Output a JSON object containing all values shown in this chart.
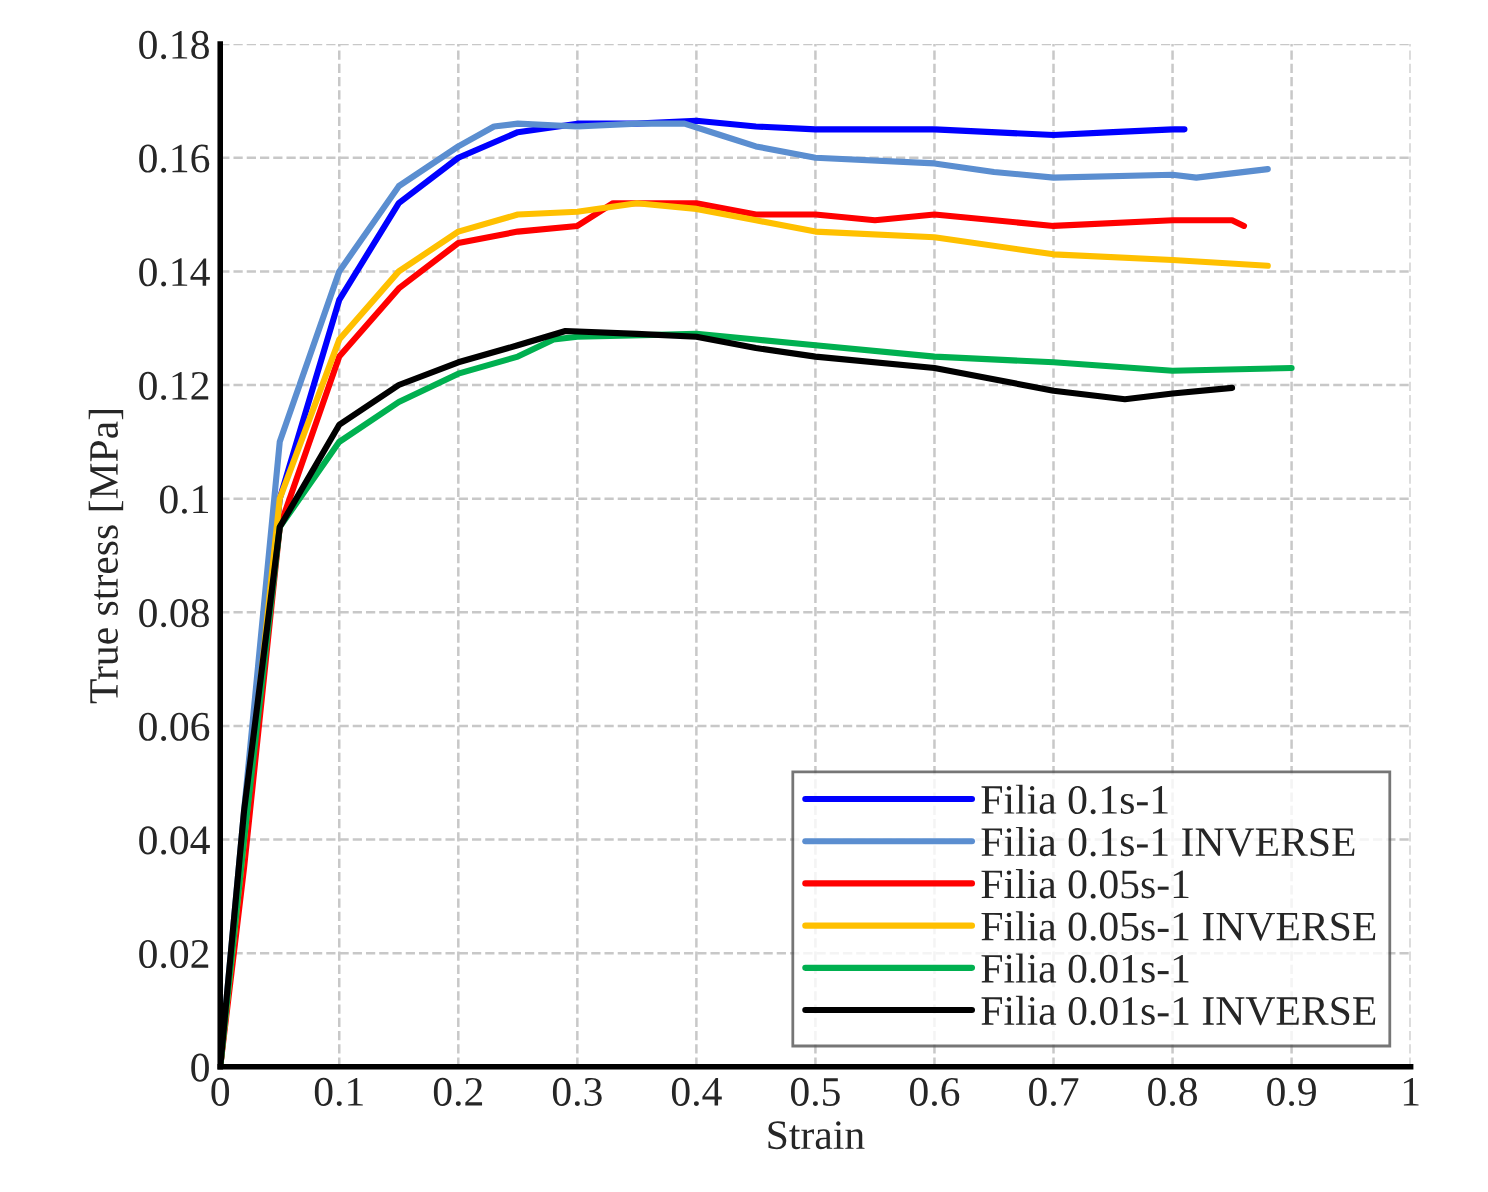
{
  "chart_data": {
    "type": "line",
    "xlabel": "Strain",
    "ylabel": "True stress [MPa]",
    "xlim": [
      0,
      1
    ],
    "xticks": [
      0,
      0.1,
      0.2,
      0.3,
      0.4,
      0.5,
      0.6,
      0.7,
      0.8,
      0.9,
      1
    ],
    "ylim": [
      0,
      0.18
    ],
    "yticks": [
      0,
      0.02,
      0.04,
      0.06,
      0.08,
      0.1,
      0.12,
      0.14,
      0.16,
      0.18
    ],
    "grid": true,
    "legend": "bottom right",
    "marker": "none",
    "line_style": "solid",
    "series": [
      {
        "name": "Filia 0.1s-1",
        "color": "#0000ff",
        "x": [
          0,
          0.02,
          0.05,
          0.1,
          0.15,
          0.2,
          0.25,
          0.3,
          0.35,
          0.4,
          0.45,
          0.5,
          0.6,
          0.7,
          0.75,
          0.8,
          0.81
        ],
        "values": [
          0,
          0.04,
          0.1,
          0.135,
          0.152,
          0.16,
          0.1645,
          0.166,
          0.166,
          0.1665,
          0.1655,
          0.165,
          0.165,
          0.164,
          0.1645,
          0.165,
          0.165
        ]
      },
      {
        "name": "Filia 0.1s-1 INVERSE",
        "color": "#5b8ed0",
        "x": [
          0,
          0.02,
          0.05,
          0.1,
          0.15,
          0.2,
          0.23,
          0.25,
          0.3,
          0.35,
          0.39,
          0.42,
          0.45,
          0.5,
          0.6,
          0.65,
          0.7,
          0.8,
          0.82,
          0.88
        ],
        "values": [
          0,
          0.045,
          0.11,
          0.14,
          0.155,
          0.162,
          0.1655,
          0.166,
          0.1655,
          0.166,
          0.166,
          0.164,
          0.162,
          0.16,
          0.159,
          0.1575,
          0.1565,
          0.157,
          0.1565,
          0.158
        ]
      },
      {
        "name": "Filia 0.05s-1",
        "color": "#ff0000",
        "x": [
          0,
          0.02,
          0.05,
          0.1,
          0.15,
          0.2,
          0.25,
          0.3,
          0.33,
          0.4,
          0.45,
          0.5,
          0.55,
          0.6,
          0.7,
          0.8,
          0.85,
          0.86
        ],
        "values": [
          0,
          0.035,
          0.095,
          0.125,
          0.137,
          0.145,
          0.147,
          0.148,
          0.152,
          0.152,
          0.15,
          0.15,
          0.149,
          0.15,
          0.148,
          0.149,
          0.149,
          0.148
        ]
      },
      {
        "name": "Filia 0.05s-1 INVERSE",
        "color": "#ffc000",
        "x": [
          0,
          0.02,
          0.05,
          0.1,
          0.15,
          0.2,
          0.25,
          0.3,
          0.35,
          0.4,
          0.45,
          0.5,
          0.6,
          0.7,
          0.8,
          0.88
        ],
        "values": [
          0,
          0.04,
          0.1,
          0.128,
          0.14,
          0.147,
          0.15,
          0.1505,
          0.152,
          0.151,
          0.149,
          0.147,
          0.146,
          0.143,
          0.142,
          0.141
        ]
      },
      {
        "name": "Filia 0.01s-1",
        "color": "#00b050",
        "x": [
          0,
          0.02,
          0.05,
          0.1,
          0.15,
          0.2,
          0.25,
          0.28,
          0.3,
          0.4,
          0.45,
          0.5,
          0.6,
          0.7,
          0.8,
          0.9
        ],
        "values": [
          0,
          0.04,
          0.095,
          0.11,
          0.117,
          0.122,
          0.125,
          0.128,
          0.1285,
          0.129,
          0.128,
          0.127,
          0.125,
          0.124,
          0.1225,
          0.123
        ]
      },
      {
        "name": "Filia 0.01s-1 INVERSE",
        "color": "#000000",
        "x": [
          0,
          0.02,
          0.05,
          0.1,
          0.15,
          0.2,
          0.25,
          0.29,
          0.35,
          0.4,
          0.45,
          0.5,
          0.6,
          0.7,
          0.76,
          0.8,
          0.85
        ],
        "values": [
          0,
          0.045,
          0.095,
          0.113,
          0.12,
          0.124,
          0.127,
          0.1295,
          0.129,
          0.1285,
          0.1265,
          0.125,
          0.123,
          0.119,
          0.1175,
          0.1185,
          0.1195
        ]
      }
    ]
  }
}
